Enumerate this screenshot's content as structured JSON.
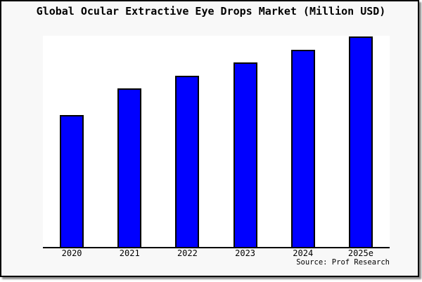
{
  "figure": {
    "background_color": "#f8f8f8",
    "frame_border_color": "#000000",
    "plot_background_color": "#ffffff"
  },
  "chart_data": {
    "type": "bar",
    "title": "Global Ocular Extractive Eye Drops Market (Million USD)",
    "categories": [
      "2020",
      "2021",
      "2022",
      "2023",
      "2024",
      "2025e"
    ],
    "values": [
      62.7,
      75.2,
      81.4,
      87.7,
      93.6,
      99.9
    ],
    "value_scale": "relative, percent of tallest bar (figure shows no y-axis ticks or labels)",
    "ylim": [
      0,
      100.3
    ],
    "xlabel": "",
    "ylabel": "",
    "grid": false,
    "legend": false,
    "bar_color": "#0000ff",
    "bar_border_color": "#000000",
    "axis_line_color": "#000000"
  },
  "source_note": "Source: Prof Research"
}
